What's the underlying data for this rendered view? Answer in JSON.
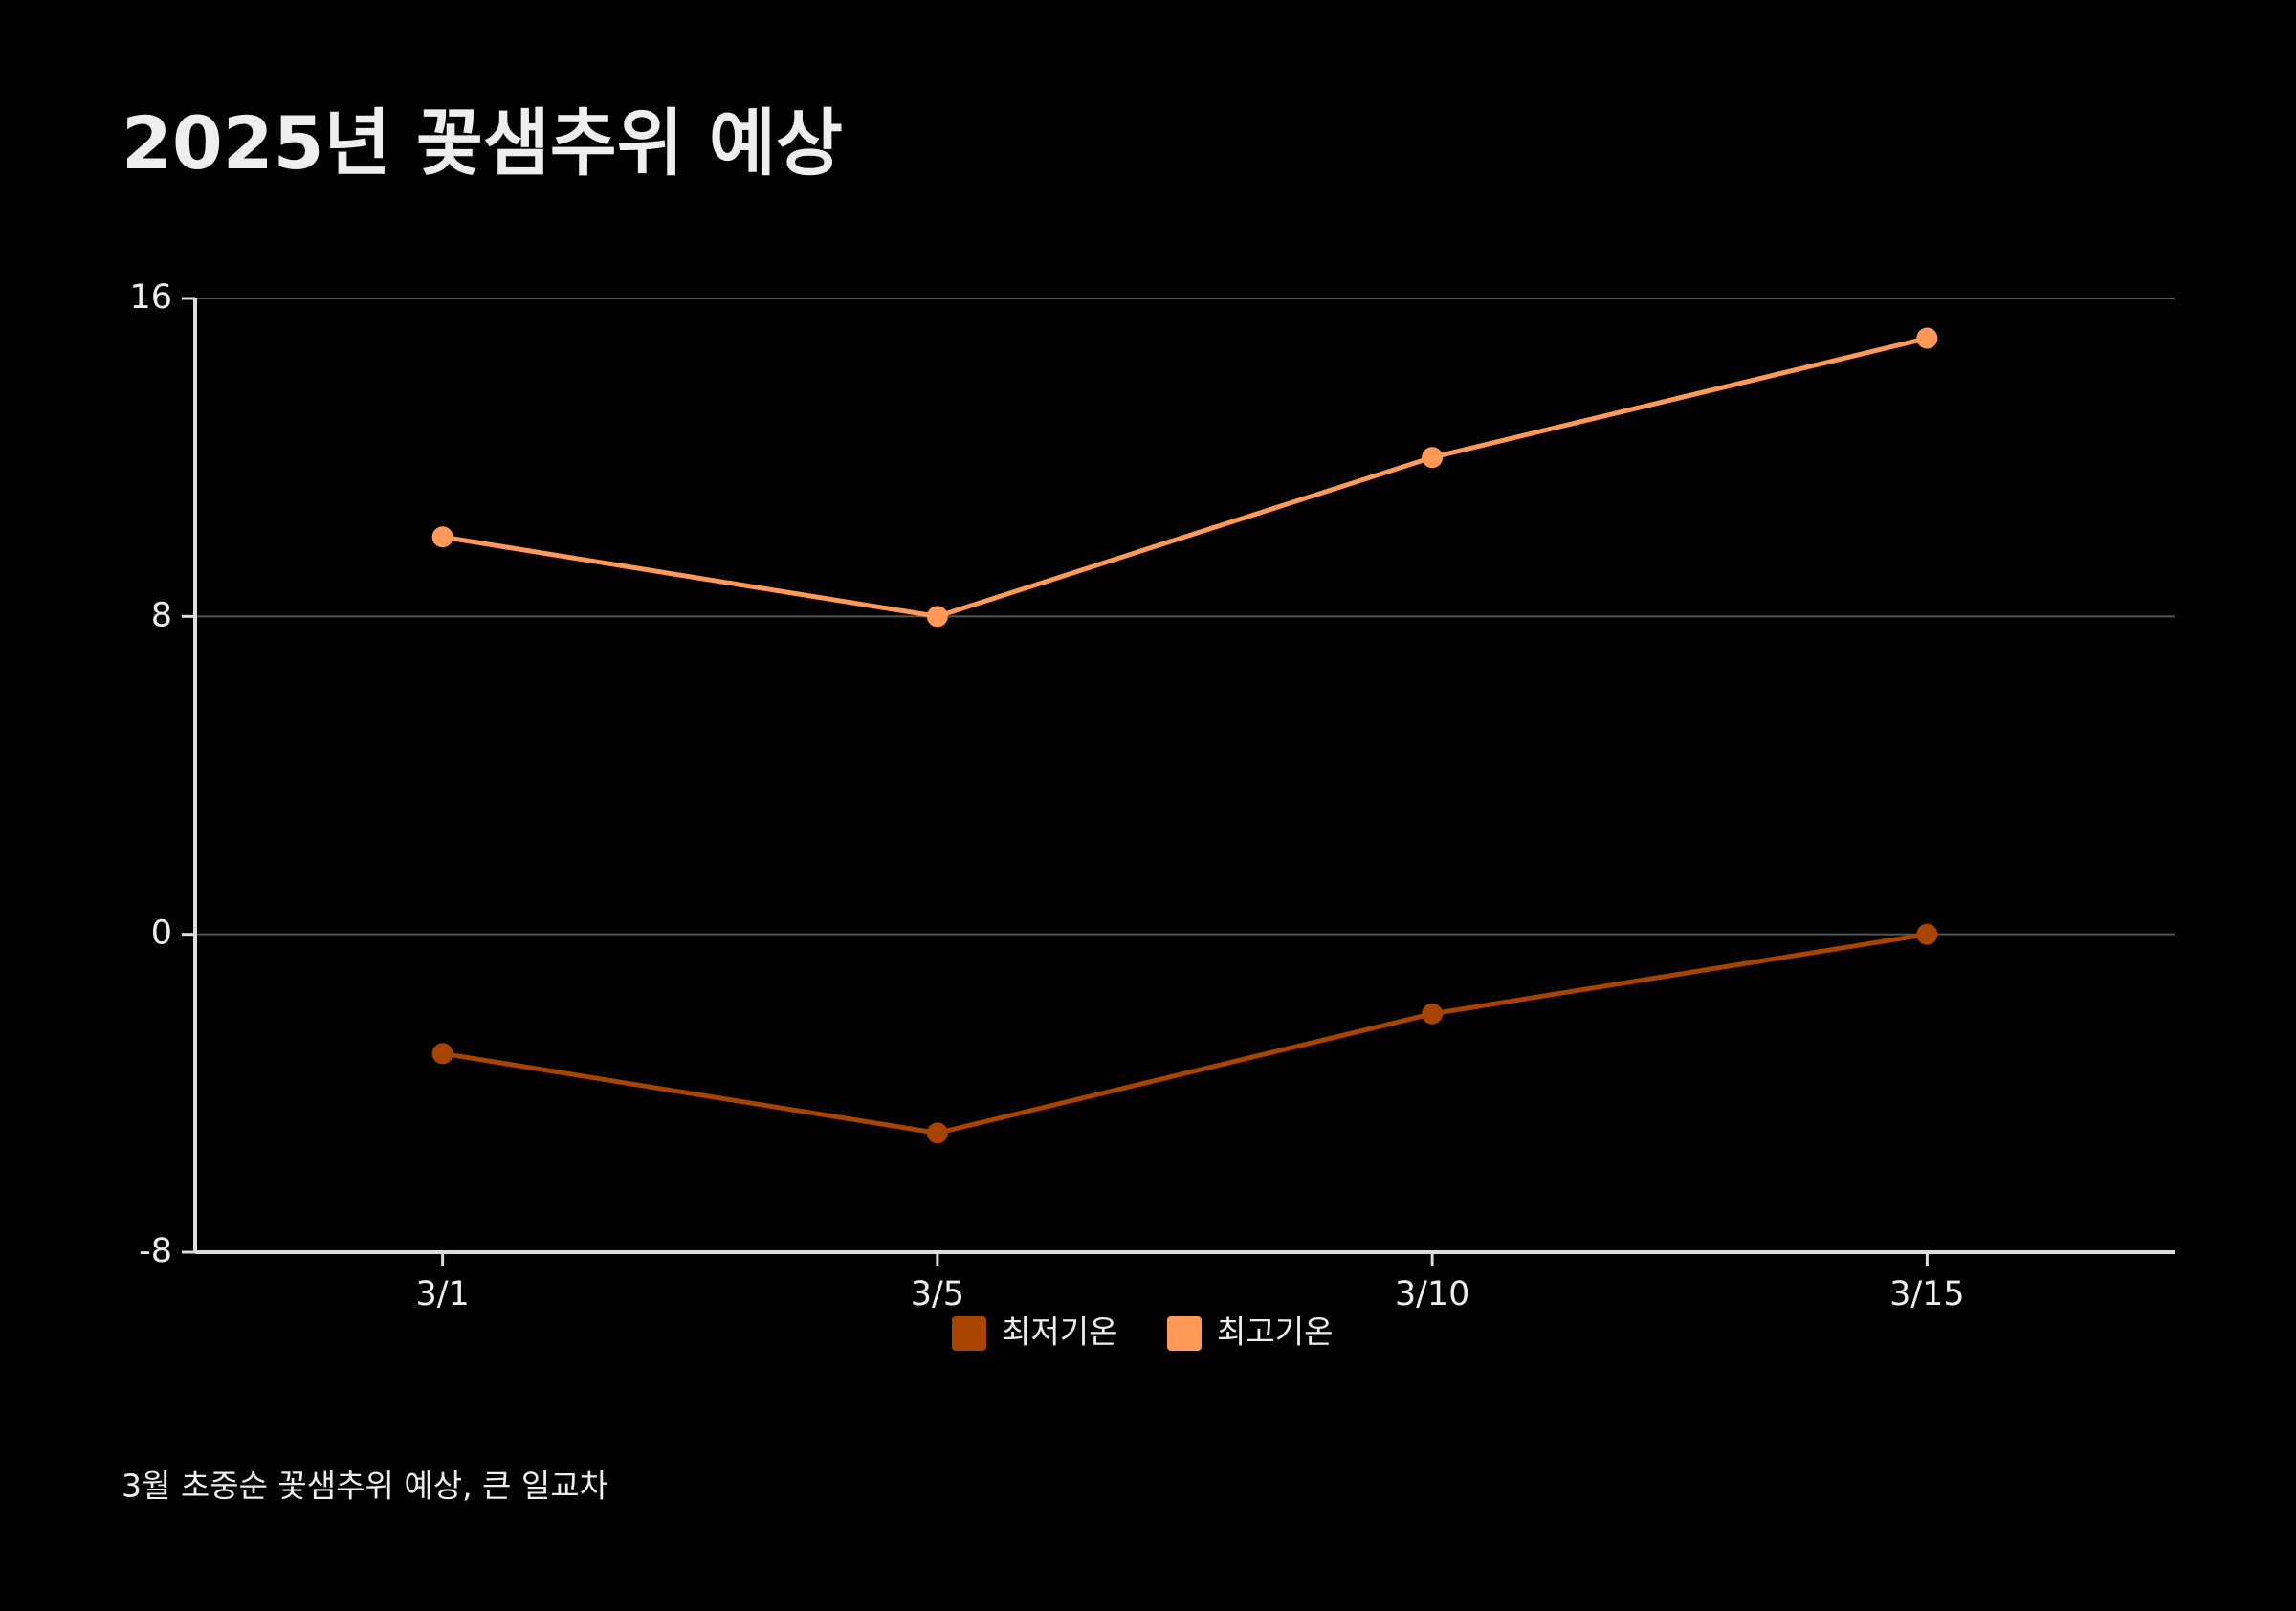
{
  "chart_data": {
    "type": "line",
    "title": "2025년 꽃샘추위 예상",
    "caption": "3월 초중순 꽃샘추위 예상, 큰 일교차",
    "categories": [
      "3/1",
      "3/5",
      "3/10",
      "3/15"
    ],
    "series": [
      {
        "name": "최저기온",
        "color": "#a84300",
        "values": [
          -3,
          -5,
          -2,
          0
        ]
      },
      {
        "name": "최고기온",
        "color": "#ff9955",
        "values": [
          10,
          8,
          12,
          15
        ]
      }
    ],
    "ylim": [
      -8,
      16
    ],
    "yticks": [
      -8,
      0,
      8,
      16
    ],
    "grid": true
  }
}
